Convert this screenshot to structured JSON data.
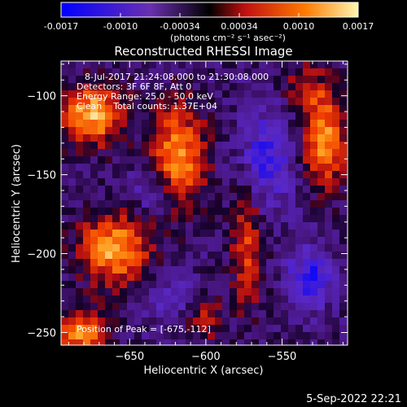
{
  "colorbar": {
    "ticks": [
      "-0.0017",
      "-0.0010",
      "-0.00034",
      "0.00034",
      "0.0010",
      "0.0017"
    ],
    "units_label": "(photons cm⁻² s⁻¹ asec⁻²)",
    "colors": [
      "#0000ff",
      "#6a2fb0",
      "#000000",
      "#c01010",
      "#ff7a00",
      "#fff6b0"
    ]
  },
  "chart_data": {
    "type": "heatmap",
    "title": "Reconstructed RHESSI Image",
    "xlabel": "Heliocentric X (arcsec)",
    "ylabel": "Heliocentric Y (arcsec)",
    "xlim": [
      -695,
      -507
    ],
    "ylim": [
      -258,
      -78
    ],
    "x_ticks": [
      -650,
      -600,
      -550
    ],
    "y_ticks": [
      -100,
      -150,
      -200,
      -250
    ],
    "colorscale_range": [
      -0.0017,
      0.0017
    ],
    "annotations": [
      "8-Jul-2017 21:24:08.000 to 21:30:08.000",
      "Detectors: 3F 6F 8F, Att 0",
      "Energy Range: 25.0 - 50.0 keV",
      "Clean    Total counts: 1.37E+04"
    ],
    "peak_label": "Position of Peak = [",
    "peak_value": "-675,-112",
    "peak_suffix": "]",
    "peak": [
      -675,
      -112
    ],
    "sources": [
      {
        "x": -675,
        "y": -112,
        "amp": 1.0,
        "sx": 15,
        "sy": 13
      },
      {
        "x": -660,
        "y": -197,
        "amp": 0.95,
        "sx": 16,
        "sy": 15
      },
      {
        "x": -682,
        "y": -250,
        "amp": 0.85,
        "sx": 12,
        "sy": 10
      },
      {
        "x": -618,
        "y": -138,
        "amp": 0.9,
        "sx": 12,
        "sy": 22
      },
      {
        "x": -522,
        "y": -128,
        "amp": 0.9,
        "sx": 10,
        "sy": 20
      },
      {
        "x": -573,
        "y": -195,
        "amp": 0.6,
        "sx": 7,
        "sy": 28
      },
      {
        "x": -602,
        "y": -240,
        "amp": 0.5,
        "sx": 9,
        "sy": 10
      },
      {
        "x": -535,
        "y": -95,
        "amp": 0.45,
        "sx": 10,
        "sy": 10
      },
      {
        "x": -560,
        "y": -140,
        "amp": -0.55,
        "sx": 12,
        "sy": 22
      },
      {
        "x": -532,
        "y": -215,
        "amp": -0.6,
        "sx": 10,
        "sy": 14
      },
      {
        "x": -635,
        "y": -160,
        "amp": -0.35,
        "sx": 10,
        "sy": 10
      },
      {
        "x": -620,
        "y": -230,
        "amp": -0.3,
        "sx": 12,
        "sy": 12
      }
    ]
  },
  "footer": {
    "date": "5-Sep-2022 22:21"
  }
}
